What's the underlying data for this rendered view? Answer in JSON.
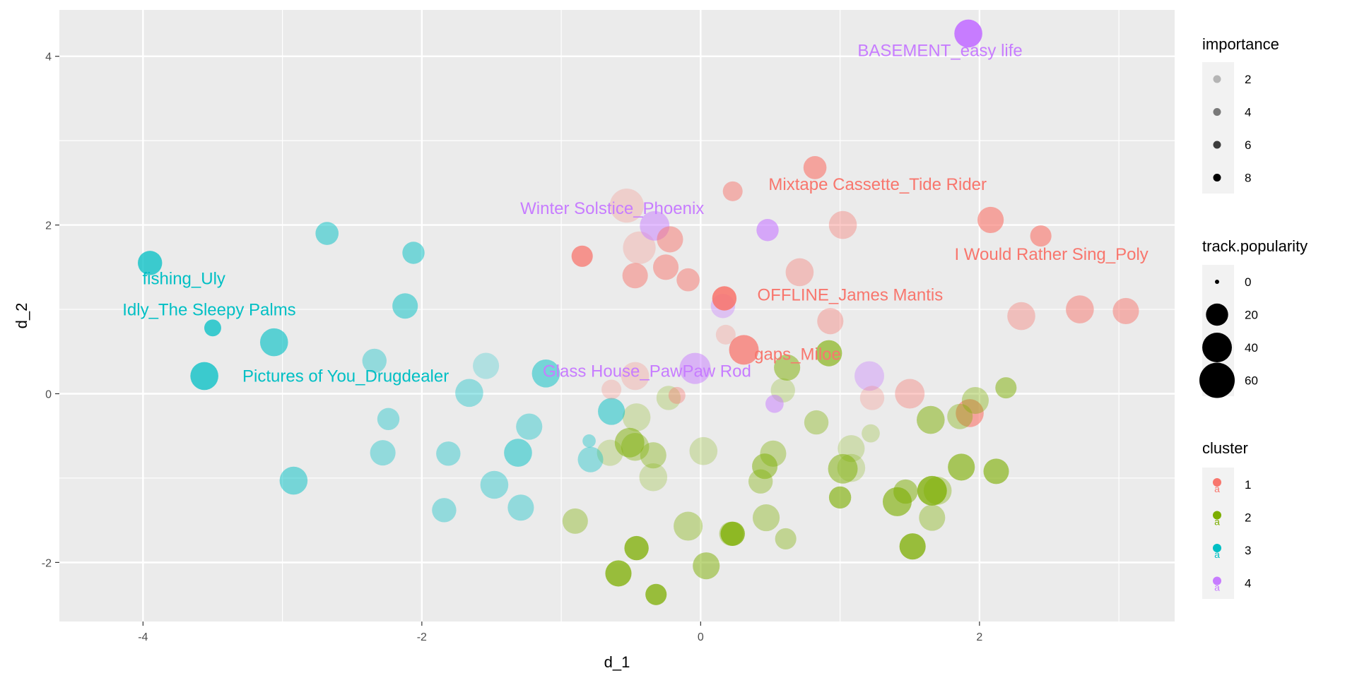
{
  "chart_data": {
    "type": "scatter",
    "xlabel": "d_1",
    "ylabel": "d_2",
    "xlim": [
      -4.6,
      3.4
    ],
    "ylim": [
      -2.7,
      4.55
    ],
    "x_ticks": [
      -4,
      -2,
      0,
      2
    ],
    "y_ticks": [
      -2,
      0,
      2,
      4
    ],
    "x_tick_labels": [
      "-4",
      "-2",
      "0",
      "2"
    ],
    "y_tick_labels": [
      "-2",
      "0",
      "2",
      "4"
    ],
    "grid": true,
    "legend_position": "right",
    "colors": {
      "1": "#F8766D",
      "2": "#7CAE00",
      "3": "#00BFC4",
      "4": "#C77CFF",
      "panel": "#EBEBEB",
      "grid": "#FFFFFF"
    },
    "legends": {
      "importance": {
        "title": "importance",
        "items": [
          {
            "label": "2",
            "alpha": 0.25
          },
          {
            "label": "4",
            "alpha": 0.5
          },
          {
            "label": "6",
            "alpha": 0.75
          },
          {
            "label": "8",
            "alpha": 1.0
          }
        ]
      },
      "popularity": {
        "title": "track.popularity",
        "items": [
          {
            "label": "0",
            "value": 0
          },
          {
            "label": "20",
            "value": 20
          },
          {
            "label": "40",
            "value": 40
          },
          {
            "label": "60",
            "value": 60
          }
        ]
      },
      "cluster": {
        "title": "cluster",
        "items": [
          {
            "label": "1",
            "cluster": 1
          },
          {
            "label": "2",
            "cluster": 2
          },
          {
            "label": "3",
            "cluster": 3
          },
          {
            "label": "4",
            "cluster": 4
          }
        ]
      }
    },
    "labels": [
      {
        "text": "BASEMENT_easy life",
        "x": 1.92,
        "y": 4.27,
        "cluster": 4
      },
      {
        "text": "Mixtape Cassette_Tide Rider",
        "x": 0.23,
        "y": 2.4,
        "cluster": 1
      },
      {
        "text": "Winter Solstice_Phoenix",
        "x": -0.32,
        "y": 1.98,
        "cluster": 4
      },
      {
        "text": "I Would Rather Sing_Poly",
        "x": 2.44,
        "y": 1.87,
        "cluster": 1
      },
      {
        "text": "fishing_Uly",
        "x": -3.95,
        "y": 1.55,
        "cluster": 3
      },
      {
        "text": "OFFLINE_James Mantis",
        "x": 0.17,
        "y": 1.13,
        "cluster": 1
      },
      {
        "text": "Idly_The Sleepy Palms",
        "x": -3.5,
        "y": 0.78,
        "cluster": 3
      },
      {
        "text": "gaps_Miloe",
        "x": 0.31,
        "y": 0.52,
        "cluster": 1
      },
      {
        "text": "Pictures of You_Drugdealer",
        "x": -3.56,
        "y": 0.21,
        "cluster": 3
      },
      {
        "text": "Glass House_PawPaw Rod",
        "x": -0.03,
        "y": 0.3,
        "cluster": 4
      }
    ],
    "points": [
      {
        "x": 1.92,
        "y": 4.27,
        "cluster": 4,
        "popularity": 35,
        "importance": 8
      },
      {
        "x": 0.48,
        "y": 1.94,
        "cluster": 4,
        "popularity": 20,
        "importance": 5
      },
      {
        "x": -0.33,
        "y": 1.99,
        "cluster": 4,
        "popularity": 40,
        "importance": 4
      },
      {
        "x": 0.16,
        "y": 1.04,
        "cluster": 4,
        "popularity": 25,
        "importance": 3
      },
      {
        "x": -0.04,
        "y": 0.3,
        "cluster": 4,
        "popularity": 45,
        "importance": 4
      },
      {
        "x": 1.21,
        "y": 0.21,
        "cluster": 4,
        "popularity": 40,
        "importance": 3
      },
      {
        "x": 0.53,
        "y": -0.12,
        "cluster": 4,
        "popularity": 12,
        "importance": 4
      },
      {
        "x": 0.82,
        "y": 2.68,
        "cluster": 1,
        "popularity": 22,
        "importance": 5
      },
      {
        "x": 0.23,
        "y": 2.4,
        "cluster": 1,
        "popularity": 15,
        "importance": 4
      },
      {
        "x": -0.53,
        "y": 2.23,
        "cluster": 1,
        "popularity": 55,
        "importance": 2
      },
      {
        "x": -0.44,
        "y": 1.73,
        "cluster": 1,
        "popularity": 50,
        "importance": 2
      },
      {
        "x": -0.22,
        "y": 1.83,
        "cluster": 1,
        "popularity": 30,
        "importance": 4
      },
      {
        "x": 1.02,
        "y": 2.0,
        "cluster": 1,
        "popularity": 35,
        "importance": 3
      },
      {
        "x": 2.08,
        "y": 2.06,
        "cluster": 1,
        "popularity": 30,
        "importance": 5
      },
      {
        "x": 2.44,
        "y": 1.87,
        "cluster": 1,
        "popularity": 18,
        "importance": 5
      },
      {
        "x": -0.85,
        "y": 1.63,
        "cluster": 1,
        "popularity": 18,
        "importance": 6
      },
      {
        "x": -0.47,
        "y": 1.4,
        "cluster": 1,
        "popularity": 28,
        "importance": 4
      },
      {
        "x": -0.25,
        "y": 1.5,
        "cluster": 1,
        "popularity": 28,
        "importance": 4
      },
      {
        "x": -0.09,
        "y": 1.35,
        "cluster": 1,
        "popularity": 22,
        "importance": 4
      },
      {
        "x": 0.71,
        "y": 1.44,
        "cluster": 1,
        "popularity": 35,
        "importance": 3
      },
      {
        "x": 0.17,
        "y": 1.13,
        "cluster": 1,
        "popularity": 25,
        "importance": 7
      },
      {
        "x": 2.72,
        "y": 1.0,
        "cluster": 1,
        "popularity": 35,
        "importance": 4
      },
      {
        "x": 3.05,
        "y": 0.98,
        "cluster": 1,
        "popularity": 30,
        "importance": 4
      },
      {
        "x": 2.3,
        "y": 0.92,
        "cluster": 1,
        "popularity": 35,
        "importance": 3
      },
      {
        "x": 0.93,
        "y": 0.86,
        "cluster": 1,
        "popularity": 30,
        "importance": 3
      },
      {
        "x": 0.18,
        "y": 0.7,
        "cluster": 1,
        "popularity": 15,
        "importance": 2
      },
      {
        "x": 0.31,
        "y": 0.52,
        "cluster": 1,
        "popularity": 40,
        "importance": 6
      },
      {
        "x": -0.47,
        "y": 0.21,
        "cluster": 1,
        "popularity": 35,
        "importance": 2
      },
      {
        "x": -0.64,
        "y": 0.05,
        "cluster": 1,
        "popularity": 15,
        "importance": 2
      },
      {
        "x": -0.17,
        "y": -0.02,
        "cluster": 1,
        "popularity": 10,
        "importance": 3
      },
      {
        "x": 1.5,
        "y": 0.0,
        "cluster": 1,
        "popularity": 40,
        "importance": 3
      },
      {
        "x": 1.23,
        "y": -0.05,
        "cluster": 1,
        "popularity": 25,
        "importance": 2
      },
      {
        "x": 1.93,
        "y": -0.23,
        "cluster": 1,
        "popularity": 35,
        "importance": 5
      },
      {
        "x": -3.95,
        "y": 1.55,
        "cluster": 3,
        "popularity": 25,
        "importance": 6
      },
      {
        "x": -3.5,
        "y": 0.78,
        "cluster": 3,
        "popularity": 10,
        "importance": 6
      },
      {
        "x": -3.56,
        "y": 0.21,
        "cluster": 3,
        "popularity": 35,
        "importance": 6
      },
      {
        "x": -2.68,
        "y": 1.9,
        "cluster": 3,
        "popularity": 22,
        "importance": 4
      },
      {
        "x": -2.06,
        "y": 1.67,
        "cluster": 3,
        "popularity": 20,
        "importance": 4
      },
      {
        "x": -2.12,
        "y": 1.04,
        "cluster": 3,
        "popularity": 28,
        "importance": 4
      },
      {
        "x": -3.06,
        "y": 0.61,
        "cluster": 3,
        "popularity": 35,
        "importance": 5
      },
      {
        "x": -2.34,
        "y": 0.39,
        "cluster": 3,
        "popularity": 25,
        "importance": 3
      },
      {
        "x": -1.54,
        "y": 0.33,
        "cluster": 3,
        "popularity": 30,
        "importance": 2
      },
      {
        "x": -1.66,
        "y": 0.01,
        "cluster": 3,
        "popularity": 35,
        "importance": 3
      },
      {
        "x": -1.11,
        "y": 0.24,
        "cluster": 3,
        "popularity": 35,
        "importance": 4
      },
      {
        "x": -2.24,
        "y": -0.3,
        "cluster": 3,
        "popularity": 20,
        "importance": 3
      },
      {
        "x": -1.23,
        "y": -0.39,
        "cluster": 3,
        "popularity": 30,
        "importance": 3
      },
      {
        "x": -0.64,
        "y": -0.21,
        "cluster": 3,
        "popularity": 32,
        "importance": 4
      },
      {
        "x": -0.8,
        "y": -0.56,
        "cluster": 3,
        "popularity": 5,
        "importance": 3
      },
      {
        "x": -2.28,
        "y": -0.7,
        "cluster": 3,
        "popularity": 28,
        "importance": 3
      },
      {
        "x": -1.81,
        "y": -0.71,
        "cluster": 3,
        "popularity": 25,
        "importance": 3
      },
      {
        "x": -1.31,
        "y": -0.7,
        "cluster": 3,
        "popularity": 35,
        "importance": 4
      },
      {
        "x": -0.79,
        "y": -0.78,
        "cluster": 3,
        "popularity": 28,
        "importance": 3
      },
      {
        "x": -2.92,
        "y": -1.03,
        "cluster": 3,
        "popularity": 35,
        "importance": 4
      },
      {
        "x": -1.48,
        "y": -1.08,
        "cluster": 3,
        "popularity": 35,
        "importance": 3
      },
      {
        "x": -1.84,
        "y": -1.38,
        "cluster": 3,
        "popularity": 25,
        "importance": 3
      },
      {
        "x": -1.29,
        "y": -1.35,
        "cluster": 3,
        "popularity": 30,
        "importance": 3
      },
      {
        "x": 0.92,
        "y": 0.48,
        "cluster": 2,
        "popularity": 30,
        "importance": 5
      },
      {
        "x": 0.62,
        "y": 0.31,
        "cluster": 2,
        "popularity": 30,
        "importance": 4
      },
      {
        "x": 0.59,
        "y": 0.04,
        "cluster": 2,
        "popularity": 25,
        "importance": 2
      },
      {
        "x": -0.23,
        "y": -0.05,
        "cluster": 2,
        "popularity": 25,
        "importance": 2
      },
      {
        "x": 2.19,
        "y": 0.07,
        "cluster": 2,
        "popularity": 18,
        "importance": 4
      },
      {
        "x": 1.97,
        "y": -0.08,
        "cluster": 2,
        "popularity": 32,
        "importance": 3
      },
      {
        "x": 1.86,
        "y": -0.27,
        "cluster": 2,
        "popularity": 28,
        "importance": 3
      },
      {
        "x": 1.65,
        "y": -0.31,
        "cluster": 2,
        "popularity": 35,
        "importance": 4
      },
      {
        "x": -0.46,
        "y": -0.28,
        "cluster": 2,
        "popularity": 35,
        "importance": 2
      },
      {
        "x": 0.83,
        "y": -0.34,
        "cluster": 2,
        "popularity": 25,
        "importance": 3
      },
      {
        "x": 1.22,
        "y": -0.47,
        "cluster": 2,
        "popularity": 12,
        "importance": 2
      },
      {
        "x": -0.51,
        "y": -0.58,
        "cluster": 2,
        "popularity": 40,
        "importance": 4
      },
      {
        "x": -0.65,
        "y": -0.7,
        "cluster": 2,
        "popularity": 30,
        "importance": 2
      },
      {
        "x": -0.47,
        "y": -0.63,
        "cluster": 2,
        "popularity": 35,
        "importance": 3
      },
      {
        "x": -0.34,
        "y": -0.73,
        "cluster": 2,
        "popularity": 30,
        "importance": 3
      },
      {
        "x": 0.02,
        "y": -0.68,
        "cluster": 2,
        "popularity": 35,
        "importance": 2
      },
      {
        "x": 0.52,
        "y": -0.71,
        "cluster": 2,
        "popularity": 30,
        "importance": 3
      },
      {
        "x": 1.08,
        "y": -0.65,
        "cluster": 2,
        "popularity": 32,
        "importance": 2
      },
      {
        "x": 0.46,
        "y": -0.86,
        "cluster": 2,
        "popularity": 28,
        "importance": 4
      },
      {
        "x": 1.02,
        "y": -0.89,
        "cluster": 2,
        "popularity": 40,
        "importance": 4
      },
      {
        "x": 1.08,
        "y": -0.88,
        "cluster": 2,
        "popularity": 35,
        "importance": 2
      },
      {
        "x": 1.87,
        "y": -0.87,
        "cluster": 2,
        "popularity": 32,
        "importance": 5
      },
      {
        "x": 2.12,
        "y": -0.92,
        "cluster": 2,
        "popularity": 28,
        "importance": 5
      },
      {
        "x": -0.34,
        "y": -0.99,
        "cluster": 2,
        "popularity": 35,
        "importance": 2
      },
      {
        "x": 0.43,
        "y": -1.04,
        "cluster": 2,
        "popularity": 25,
        "importance": 3
      },
      {
        "x": 1.66,
        "y": -1.15,
        "cluster": 2,
        "popularity": 40,
        "importance": 6
      },
      {
        "x": 1.7,
        "y": -1.15,
        "cluster": 2,
        "popularity": 35,
        "importance": 3
      },
      {
        "x": 1.47,
        "y": -1.16,
        "cluster": 2,
        "popularity": 25,
        "importance": 4
      },
      {
        "x": 1.41,
        "y": -1.28,
        "cluster": 2,
        "popularity": 38,
        "importance": 5
      },
      {
        "x": 1.0,
        "y": -1.23,
        "cluster": 2,
        "popularity": 20,
        "importance": 5
      },
      {
        "x": -0.9,
        "y": -1.51,
        "cluster": 2,
        "popularity": 28,
        "importance": 3
      },
      {
        "x": -0.09,
        "y": -1.57,
        "cluster": 2,
        "popularity": 38,
        "importance": 3
      },
      {
        "x": 0.47,
        "y": -1.47,
        "cluster": 2,
        "popularity": 32,
        "importance": 3
      },
      {
        "x": 1.66,
        "y": -1.47,
        "cluster": 2,
        "popularity": 30,
        "importance": 3
      },
      {
        "x": 0.23,
        "y": -1.66,
        "cluster": 2,
        "popularity": 25,
        "importance": 6
      },
      {
        "x": 0.22,
        "y": -1.66,
        "cluster": 2,
        "popularity": 25,
        "importance": 3
      },
      {
        "x": 0.61,
        "y": -1.72,
        "cluster": 2,
        "popularity": 18,
        "importance": 3
      },
      {
        "x": -0.46,
        "y": -1.83,
        "cluster": 2,
        "popularity": 25,
        "importance": 6
      },
      {
        "x": 1.52,
        "y": -1.81,
        "cluster": 2,
        "popularity": 30,
        "importance": 6
      },
      {
        "x": 0.04,
        "y": -2.04,
        "cluster": 2,
        "popularity": 32,
        "importance": 4
      },
      {
        "x": -0.59,
        "y": -2.13,
        "cluster": 2,
        "popularity": 30,
        "importance": 6
      },
      {
        "x": -0.32,
        "y": -2.38,
        "cluster": 2,
        "popularity": 18,
        "importance": 6
      }
    ]
  }
}
